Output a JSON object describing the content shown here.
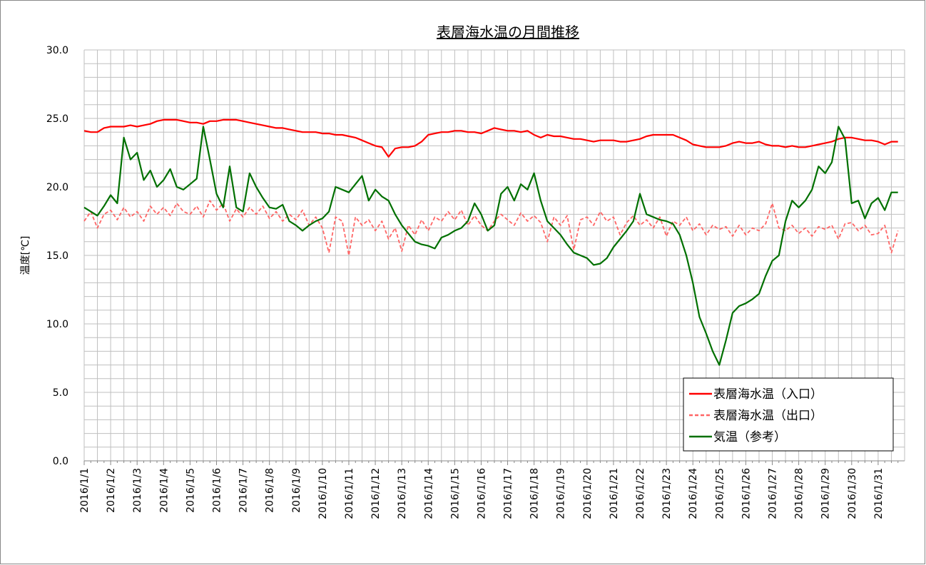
{
  "chart_data": {
    "type": "line",
    "title": "表層海水温の月間推移",
    "y_label": "温度[℃]",
    "categories": [
      "2016/1/1",
      null,
      null,
      null,
      "2016/1/2",
      null,
      null,
      null,
      "2016/1/3",
      null,
      null,
      null,
      "2016/1/4",
      null,
      null,
      null,
      "2016/1/5",
      null,
      null,
      null,
      "2016/1/6",
      null,
      null,
      null,
      "2016/1/7",
      null,
      null,
      null,
      "2016/1/8",
      null,
      null,
      null,
      "2016/1/9",
      null,
      null,
      null,
      "2016/1/10",
      null,
      null,
      null,
      "2016/1/11",
      null,
      null,
      null,
      "2016/1/12",
      null,
      null,
      null,
      "2016/1/13",
      null,
      null,
      null,
      "2016/1/14",
      null,
      null,
      null,
      "2016/1/15",
      null,
      null,
      null,
      "2016/1/16",
      null,
      null,
      null,
      "2016/1/17",
      null,
      null,
      null,
      "2016/1/18",
      null,
      null,
      null,
      "2016/1/19",
      null,
      null,
      null,
      "2016/1/20",
      null,
      null,
      null,
      "2016/1/21",
      null,
      null,
      null,
      "2016/1/22",
      null,
      null,
      null,
      "2016/1/23",
      null,
      null,
      null,
      "2016/1/24",
      null,
      null,
      null,
      "2016/1/25",
      null,
      null,
      null,
      "2016/1/26",
      null,
      null,
      null,
      "2016/1/27",
      null,
      null,
      null,
      "2016/1/28",
      null,
      null,
      null,
      "2016/1/29",
      null,
      null,
      null,
      "2016/1/30",
      null,
      null,
      null,
      "2016/1/31",
      null,
      null,
      null
    ],
    "series": [
      {
        "name": "表層海水温（入口）",
        "color": "#ff0000",
        "style": "solid",
        "values": [
          24.1,
          24.0,
          24.0,
          24.3,
          24.4,
          24.4,
          24.4,
          24.5,
          24.4,
          24.5,
          24.6,
          24.8,
          24.9,
          24.9,
          24.9,
          24.8,
          24.7,
          24.7,
          24.6,
          24.8,
          24.8,
          24.9,
          24.9,
          24.9,
          24.8,
          24.7,
          24.6,
          24.5,
          24.4,
          24.3,
          24.3,
          24.2,
          24.1,
          24.0,
          24.0,
          24.0,
          23.9,
          23.9,
          23.8,
          23.8,
          23.7,
          23.6,
          23.4,
          23.2,
          23.0,
          22.9,
          22.2,
          22.8,
          22.9,
          22.9,
          23.0,
          23.3,
          23.8,
          23.9,
          24.0,
          24.0,
          24.1,
          24.1,
          24.0,
          24.0,
          23.9,
          24.1,
          24.3,
          24.2,
          24.1,
          24.1,
          24.0,
          24.1,
          23.8,
          23.6,
          23.8,
          23.7,
          23.7,
          23.6,
          23.5,
          23.5,
          23.4,
          23.3,
          23.4,
          23.4,
          23.4,
          23.3,
          23.3,
          23.4,
          23.5,
          23.7,
          23.8,
          23.8,
          23.8,
          23.8,
          23.6,
          23.4,
          23.1,
          23.0,
          22.9,
          22.9,
          22.9,
          23.0,
          23.2,
          23.3,
          23.2,
          23.2,
          23.3,
          23.1,
          23.0,
          23.0,
          22.9,
          23.0,
          22.9,
          22.9,
          23.0,
          23.1,
          23.2,
          23.3,
          23.5,
          23.6,
          23.6,
          23.5,
          23.4,
          23.4,
          23.3,
          23.1,
          23.3,
          23.3
        ]
      },
      {
        "name": "表層海水温（出口）",
        "color": "#ff6666",
        "style": "dashed",
        "values": [
          17.5,
          18.2,
          17.0,
          18.0,
          18.3,
          17.6,
          18.5,
          17.8,
          18.2,
          17.5,
          18.6,
          18.0,
          18.5,
          17.9,
          18.8,
          18.2,
          18.0,
          18.6,
          17.8,
          19.0,
          18.3,
          18.8,
          17.5,
          18.4,
          17.8,
          18.5,
          18.0,
          18.6,
          17.7,
          18.2,
          17.5,
          18.0,
          17.6,
          18.3,
          17.2,
          17.8,
          17.0,
          15.2,
          17.8,
          17.5,
          15.0,
          17.8,
          17.2,
          17.6,
          16.8,
          17.5,
          16.2,
          17.0,
          15.3,
          17.2,
          16.5,
          17.6,
          16.8,
          17.8,
          17.5,
          18.2,
          17.6,
          18.3,
          17.2,
          17.9,
          17.2,
          16.8,
          17.5,
          18.0,
          17.6,
          17.2,
          18.1,
          17.5,
          17.9,
          17.4,
          16.0,
          17.8,
          17.2,
          17.9,
          15.4,
          17.6,
          17.8,
          17.2,
          18.2,
          17.5,
          17.8,
          16.5,
          17.4,
          17.9,
          17.2,
          17.6,
          17.0,
          17.8,
          16.4,
          17.5,
          17.2,
          17.8,
          16.8,
          17.3,
          16.5,
          17.2,
          16.9,
          17.1,
          16.4,
          17.2,
          16.5,
          17.0,
          16.8,
          17.3,
          18.8,
          17.0,
          16.8,
          17.2,
          16.6,
          17.0,
          16.4,
          17.1,
          16.9,
          17.2,
          16.2,
          17.3,
          17.4,
          16.8,
          17.2,
          16.5,
          16.6,
          17.2,
          15.2,
          16.8
        ]
      },
      {
        "name": "気温（参考）",
        "color": "#007000",
        "style": "solid",
        "values": [
          18.5,
          18.2,
          17.9,
          18.6,
          19.4,
          18.8,
          23.6,
          22.0,
          22.5,
          20.5,
          21.2,
          20.0,
          20.5,
          21.3,
          20.0,
          19.8,
          20.2,
          20.6,
          24.4,
          22.0,
          19.5,
          18.5,
          21.5,
          18.5,
          18.2,
          21.0,
          20.0,
          19.2,
          18.5,
          18.4,
          18.7,
          17.5,
          17.2,
          16.8,
          17.2,
          17.5,
          17.7,
          18.2,
          20.0,
          19.8,
          19.6,
          20.2,
          20.8,
          19.0,
          19.8,
          19.3,
          19.0,
          18.0,
          17.2,
          16.6,
          16.0,
          15.8,
          15.7,
          15.5,
          16.3,
          16.5,
          16.8,
          17.0,
          17.5,
          18.8,
          18.0,
          16.8,
          17.2,
          19.5,
          20.0,
          19.0,
          20.2,
          19.8,
          21.0,
          19.0,
          17.5,
          17.0,
          16.5,
          15.8,
          15.2,
          15.0,
          14.8,
          14.3,
          14.4,
          14.8,
          15.6,
          16.2,
          16.8,
          17.5,
          19.5,
          18.0,
          17.8,
          17.6,
          17.5,
          17.3,
          16.5,
          15.0,
          13.0,
          10.5,
          9.3,
          8.0,
          7.0,
          8.8,
          10.8,
          11.3,
          11.5,
          11.8,
          12.2,
          13.5,
          14.6,
          15.0,
          17.5,
          19.0,
          18.5,
          19.0,
          19.8,
          21.5,
          21.0,
          21.8,
          24.4,
          23.5,
          18.8,
          19.0,
          17.7,
          18.8,
          19.2,
          18.3,
          19.6,
          19.6
        ]
      }
    ],
    "ylim": [
      0,
      30
    ],
    "yticks": [
      {
        "value": 0,
        "label": "0.0"
      },
      {
        "value": 5,
        "label": "5.0"
      },
      {
        "value": 10,
        "label": "10.0"
      },
      {
        "value": 15,
        "label": "15.0"
      },
      {
        "value": 20,
        "label": "20.0"
      },
      {
        "value": 25,
        "label": "25.0"
      },
      {
        "value": 30,
        "label": "30.0"
      }
    ],
    "y_minor_ticks": [
      1,
      2,
      3,
      4,
      6,
      7,
      8,
      9,
      11,
      12,
      13,
      14,
      16,
      17,
      18,
      19,
      21,
      22,
      23,
      24,
      26,
      27,
      28,
      29
    ],
    "grid": true,
    "legend": "lower right"
  }
}
